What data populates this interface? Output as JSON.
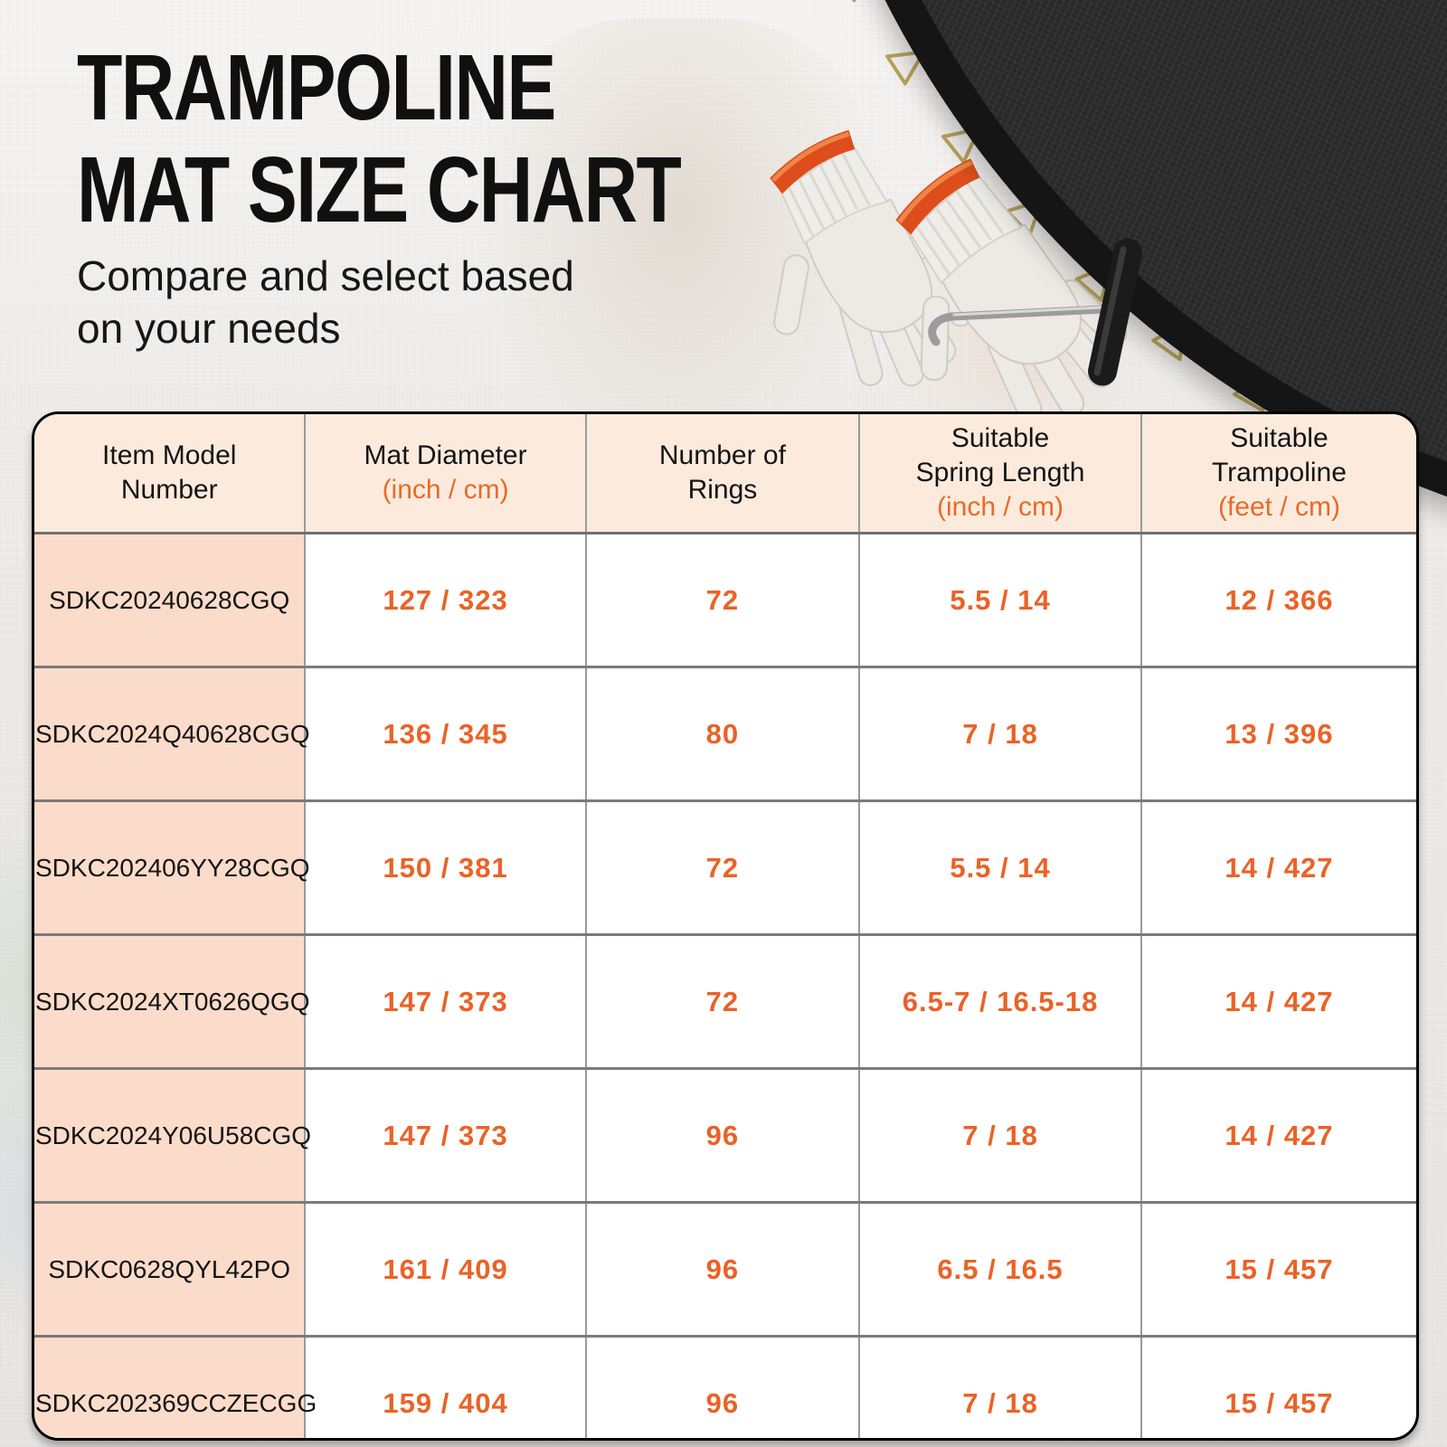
{
  "header": {
    "title_line1": "TRAMPOLINE",
    "title_line2": "MAT SIZE CHART",
    "subtitle_line1": "Compare and select based",
    "subtitle_line2": "on your needs"
  },
  "colors": {
    "accent_orange": "#ea6226",
    "header_bg": "#fcebdd",
    "model_column_bg": "#fbdcca",
    "mat_black": "#2c2c2c",
    "ring_gold": "#b9a35c",
    "glove_cuff_orange": "#de4e1c"
  },
  "graphics": {
    "mat_label": "trampoline mat",
    "gloves_label": "work gloves",
    "tool_label": "spring pull tool"
  },
  "table": {
    "columns": [
      {
        "line1": "Item Model",
        "line2": "Number",
        "sub": ""
      },
      {
        "line1": "Mat Diameter",
        "line2": "",
        "sub": "(inch / cm)"
      },
      {
        "line1": "Number of",
        "line2": "Rings",
        "sub": ""
      },
      {
        "line1": "Suitable",
        "line2": "Spring Length",
        "sub": "(inch / cm)"
      },
      {
        "line1": "Suitable",
        "line2": "Trampoline",
        "sub": "(feet / cm)"
      }
    ],
    "rows": [
      {
        "model": "SDKC20240628CGQ",
        "mat_diameter": "127 / 323",
        "rings": "72",
        "spring_length": "5.5 / 14",
        "trampoline": "12 / 366"
      },
      {
        "model": "SDKC2024Q40628CGQ",
        "mat_diameter": "136 / 345",
        "rings": "80",
        "spring_length": "7 / 18",
        "trampoline": "13 / 396"
      },
      {
        "model": "SDKC202406YY28CGQ",
        "mat_diameter": "150 / 381",
        "rings": "72",
        "spring_length": "5.5 / 14",
        "trampoline": "14 / 427"
      },
      {
        "model": "SDKC2024XT0626QGQ",
        "mat_diameter": "147 / 373",
        "rings": "72",
        "spring_length": "6.5-7 / 16.5-18",
        "trampoline": "14 / 427"
      },
      {
        "model": "SDKC2024Y06U58CGQ",
        "mat_diameter": "147 / 373",
        "rings": "96",
        "spring_length": "7 / 18",
        "trampoline": "14 / 427"
      },
      {
        "model": "SDKC0628QYL42PO",
        "mat_diameter": "161 / 409",
        "rings": "96",
        "spring_length": "6.5 / 16.5",
        "trampoline": "15 / 457"
      },
      {
        "model": "SDKC202369CCZECGG",
        "mat_diameter": "159 / 404",
        "rings": "96",
        "spring_length": "7 / 18",
        "trampoline": "15 / 457"
      }
    ]
  }
}
